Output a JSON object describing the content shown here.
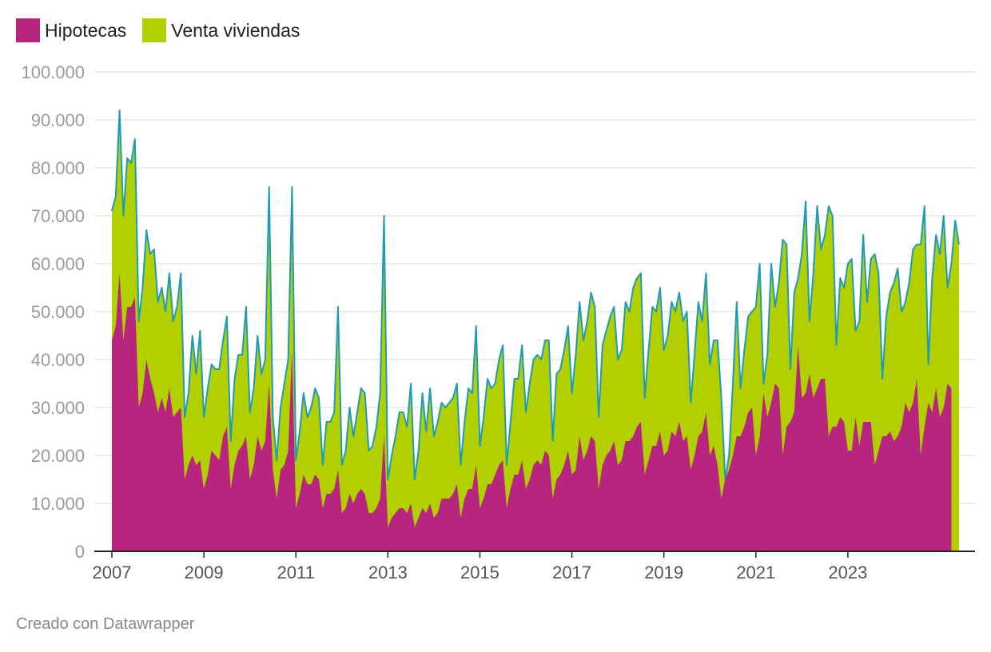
{
  "colors": {
    "hipotecas": "#b8257f",
    "venta": "#b2cf00",
    "line": "#1f9bb8",
    "grid": "#dddddd",
    "axis": "#222222"
  },
  "legend": [
    {
      "label": "Hipotecas",
      "color": "#b8257f"
    },
    {
      "label": "Venta viviendas",
      "color": "#b2cf00"
    }
  ],
  "credit": "Creado con Datawrapper",
  "chart_data": {
    "type": "area",
    "stacked": false,
    "grid": true,
    "legend_position": "top-left",
    "x_start": "2007-01",
    "x_end": "2024-12",
    "y_ticks": [
      {
        "value": 0,
        "label": "0"
      },
      {
        "value": 10000,
        "label": "10.000"
      },
      {
        "value": 20000,
        "label": "20.000"
      },
      {
        "value": 30000,
        "label": "30.000"
      },
      {
        "value": 40000,
        "label": "40.000"
      },
      {
        "value": 50000,
        "label": "50.000"
      },
      {
        "value": 60000,
        "label": "60.000"
      },
      {
        "value": 70000,
        "label": "70.000"
      },
      {
        "value": 80000,
        "label": "80.000"
      },
      {
        "value": 90000,
        "label": "90.000"
      },
      {
        "value": 100000,
        "label": "100.000"
      }
    ],
    "x_ticks": [
      {
        "value": 2007,
        "label": "2007"
      },
      {
        "value": 2009,
        "label": "2009"
      },
      {
        "value": 2011,
        "label": "2011"
      },
      {
        "value": 2013,
        "label": "2013"
      },
      {
        "value": 2015,
        "label": "2015"
      },
      {
        "value": 2017,
        "label": "2017"
      },
      {
        "value": 2019,
        "label": "2019"
      },
      {
        "value": 2021,
        "label": "2021"
      },
      {
        "value": 2023,
        "label": "2023"
      }
    ],
    "ylim": [
      0,
      100000
    ],
    "series": [
      {
        "name": "Venta viviendas",
        "color": "#b2cf00",
        "values": [
          71000,
          74000,
          92000,
          70000,
          82000,
          81000,
          86000,
          48000,
          55000,
          67000,
          62000,
          63000,
          52000,
          55000,
          50000,
          58000,
          48000,
          51000,
          58000,
          28000,
          33000,
          45000,
          37000,
          46000,
          28000,
          34000,
          39000,
          38000,
          38000,
          44000,
          49000,
          23000,
          36000,
          41000,
          41000,
          51000,
          29000,
          34000,
          45000,
          37000,
          40000,
          76000,
          28000,
          19000,
          30000,
          35000,
          40000,
          76000,
          19000,
          25000,
          33000,
          28000,
          30000,
          34000,
          32000,
          18000,
          27000,
          27000,
          29000,
          51000,
          18000,
          21000,
          30000,
          24000,
          29000,
          34000,
          33000,
          21000,
          22000,
          26000,
          33000,
          70000,
          15000,
          20000,
          24000,
          29000,
          29000,
          26000,
          35000,
          15000,
          21000,
          33000,
          25000,
          34000,
          24000,
          27000,
          31000,
          30000,
          31000,
          32000,
          35000,
          18000,
          27000,
          34000,
          33000,
          47000,
          22000,
          28000,
          36000,
          34000,
          35000,
          40000,
          43000,
          18000,
          27000,
          36000,
          36000,
          43000,
          29000,
          35000,
          40000,
          41000,
          40000,
          44000,
          44000,
          23000,
          37000,
          38000,
          42000,
          47000,
          33000,
          41000,
          52000,
          44000,
          48000,
          54000,
          51000,
          28000,
          43000,
          46000,
          49000,
          51000,
          40000,
          42000,
          52000,
          50000,
          55000,
          57000,
          58000,
          32000,
          42000,
          51000,
          50000,
          55000,
          42000,
          45000,
          52000,
          50000,
          54000,
          48000,
          50000,
          31000,
          41000,
          52000,
          48000,
          58000,
          39000,
          44000,
          44000,
          32000,
          15000,
          20000,
          35000,
          52000,
          34000,
          42000,
          49000,
          50000,
          51000,
          60000,
          35000,
          41000,
          60000,
          51000,
          56000,
          65000,
          64000,
          38000,
          54000,
          57000,
          62000,
          73000,
          48000,
          58000,
          72000,
          63000,
          66000,
          72000,
          70000,
          43000,
          57000,
          55000,
          60000,
          61000,
          46000,
          48000,
          66000,
          52000,
          61000,
          62000,
          58000,
          36000,
          49000,
          54000,
          56000,
          59000,
          50000,
          52000,
          56000,
          63000,
          64000,
          64000,
          72000,
          39000,
          57000,
          66000,
          62000,
          70000,
          55000,
          60000,
          69000,
          64000
        ]
      },
      {
        "name": "Hipotecas",
        "color": "#b8257f",
        "values": [
          44000,
          47000,
          58000,
          44000,
          51000,
          51000,
          53000,
          30000,
          33000,
          40000,
          36000,
          33000,
          29000,
          32000,
          29000,
          34000,
          28000,
          29000,
          30000,
          15000,
          18000,
          20000,
          18000,
          19000,
          13000,
          16000,
          21000,
          20000,
          19000,
          24000,
          26000,
          13000,
          18000,
          21000,
          22000,
          24000,
          15000,
          18000,
          24000,
          21000,
          23000,
          35000,
          17000,
          11000,
          17000,
          18000,
          21000,
          42000,
          9000,
          12000,
          16000,
          14000,
          14000,
          16000,
          15000,
          9000,
          12000,
          12000,
          13000,
          17000,
          8000,
          9000,
          12000,
          10000,
          12000,
          13000,
          12000,
          8000,
          8000,
          9000,
          11000,
          24000,
          5000,
          7000,
          8000,
          9000,
          9000,
          8000,
          10000,
          5000,
          7000,
          9000,
          8000,
          10000,
          7000,
          8000,
          11000,
          11000,
          11000,
          12000,
          14000,
          7000,
          11000,
          13000,
          13000,
          18000,
          9000,
          11000,
          14000,
          14000,
          16000,
          18000,
          19000,
          9000,
          13000,
          16000,
          16000,
          19000,
          13000,
          15000,
          18000,
          19000,
          18000,
          21000,
          20000,
          11000,
          15000,
          16000,
          18000,
          21000,
          16000,
          17000,
          24000,
          19000,
          21000,
          24000,
          23000,
          13000,
          18000,
          20000,
          21000,
          23000,
          18000,
          19000,
          23000,
          23000,
          24000,
          26000,
          27000,
          16000,
          19000,
          22000,
          22000,
          25000,
          20000,
          21000,
          25000,
          24000,
          27000,
          23000,
          24000,
          17000,
          20000,
          24000,
          25000,
          29000,
          20000,
          22000,
          18000,
          11000,
          15000,
          17000,
          20000,
          24000,
          24000,
          26000,
          29000,
          30000,
          20000,
          24000,
          33000,
          28000,
          31000,
          35000,
          34000,
          20000,
          26000,
          27000,
          29000,
          43000,
          32000,
          33000,
          37000,
          32000,
          34000,
          36000,
          36000,
          24000,
          26000,
          26000,
          28000,
          27000,
          21000,
          21000,
          28000,
          22000,
          27000,
          27000,
          27000,
          18000,
          21000,
          24000,
          24000,
          25000,
          23000,
          24000,
          26000,
          31000,
          29000,
          31000,
          36000,
          20000,
          26000,
          31000,
          29000,
          34000,
          28000,
          30000,
          35000,
          34000
        ]
      }
    ]
  }
}
